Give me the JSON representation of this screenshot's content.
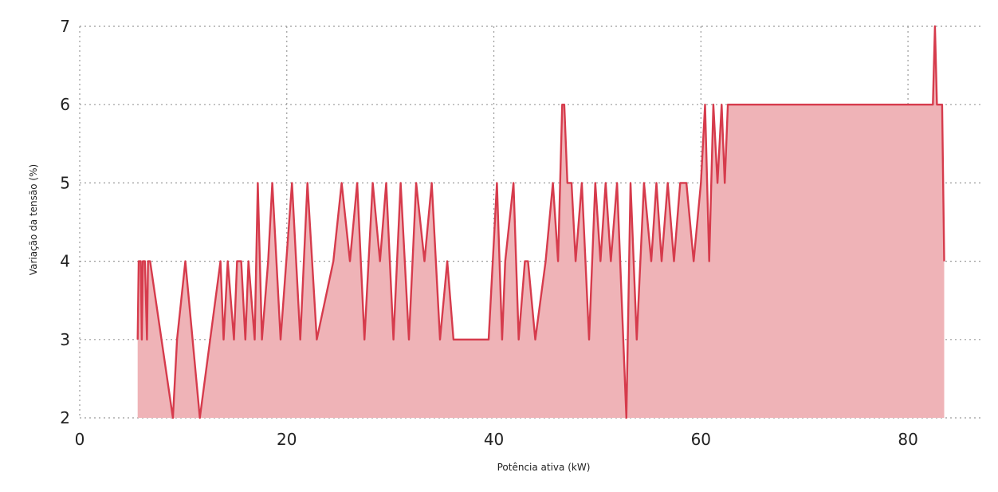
{
  "chart_data": {
    "type": "area",
    "xlabel": "Potência ativa (kW)",
    "ylabel": "Variação da tensão (%)",
    "xlim": [
      0,
      85
    ],
    "ylim": [
      2,
      7
    ],
    "xticks": [
      0,
      20,
      40,
      60,
      80
    ],
    "yticks": [
      2,
      3,
      4,
      5,
      6,
      7
    ],
    "grid": true,
    "line_color": "#d63b4c",
    "fill_color": "#efb3b7",
    "series": [
      {
        "x": [
          5.6,
          5.7,
          5.9,
          6.0,
          6.1,
          6.3,
          6.5,
          6.6,
          6.8,
          9.0,
          9.4,
          10.2,
          11.6,
          13.6,
          13.9,
          14.3,
          14.9,
          15.2,
          15.6,
          16.0,
          16.3,
          16.9,
          17.2,
          17.6,
          18.2,
          18.6,
          19.4,
          20.5,
          21.3,
          22.0,
          22.9,
          24.5,
          25.3,
          26.1,
          26.8,
          27.5,
          28.3,
          29.0,
          29.6,
          30.3,
          31.0,
          31.8,
          32.5,
          33.3,
          34.0,
          34.8,
          35.5,
          36.1,
          36.3,
          36.8,
          37.5,
          38.5,
          39.5,
          40.3,
          40.8,
          41.1,
          41.9,
          42.4,
          43.0,
          43.3,
          44.0,
          45.0,
          45.7,
          46.2,
          46.6,
          46.8,
          47.1,
          47.5,
          47.9,
          48.5,
          49.2,
          49.8,
          50.3,
          50.8,
          51.3,
          51.9,
          52.5,
          52.8,
          53.2,
          53.8,
          54.5,
          55.2,
          55.7,
          56.2,
          56.8,
          57.4,
          58.0,
          58.6,
          59.3,
          60.0,
          60.4,
          60.6,
          60.8,
          61.2,
          61.6,
          62.0,
          62.3,
          62.6,
          63.0,
          70.0,
          80.0,
          82.4,
          82.6,
          82.8,
          83.1,
          83.3,
          83.5
        ],
        "y": [
          3,
          4,
          4,
          3,
          4,
          4,
          3,
          4,
          4,
          2,
          3,
          4,
          2,
          4,
          3,
          4,
          3,
          4,
          4,
          3,
          4,
          3,
          5,
          3,
          4,
          5,
          3,
          5,
          3,
          5,
          3,
          4,
          5,
          4,
          5,
          3,
          5,
          4,
          5,
          3,
          5,
          3,
          5,
          4,
          5,
          3,
          4,
          3,
          3,
          3,
          3,
          3,
          3,
          5,
          3,
          4,
          5,
          3,
          4,
          4,
          3,
          4,
          5,
          4,
          6,
          6,
          5,
          5,
          4,
          5,
          3,
          5,
          4,
          5,
          4,
          5,
          3,
          2,
          5,
          3,
          5,
          4,
          5,
          4,
          5,
          4,
          5,
          5,
          4,
          5,
          6,
          5,
          4,
          6,
          5,
          6,
          5,
          6,
          6,
          6,
          6,
          6,
          7,
          6,
          6,
          6,
          4
        ]
      }
    ]
  }
}
